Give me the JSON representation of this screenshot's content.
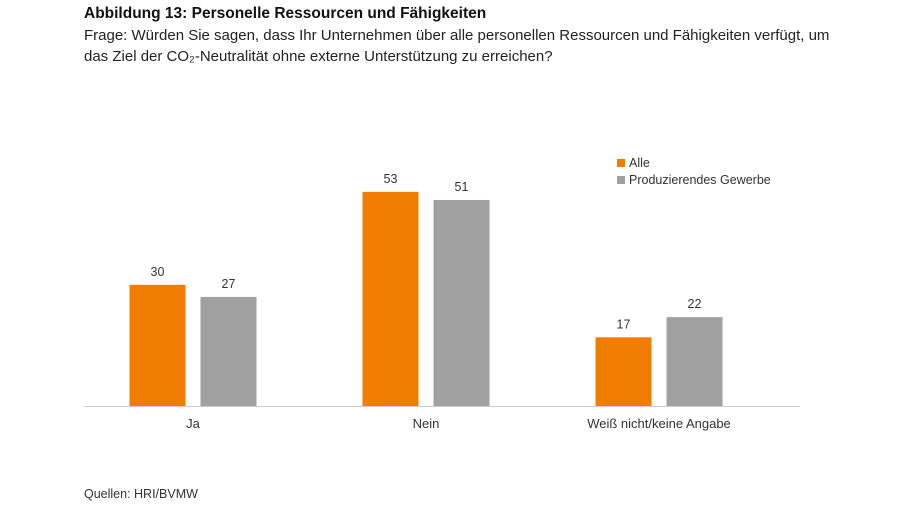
{
  "header": {
    "title": "Abbildung 13: Personelle Ressourcen und Fähigkeiten",
    "question": "Frage: Würden Sie sagen, dass Ihr Unternehmen über alle personellen Ressourcen und Fähigkeiten verfügt, um das Ziel der CO₂-Neutralität ohne externe Unterstützung zu erreichen?"
  },
  "footer": {
    "source": "Quellen: HRI/BVMW"
  },
  "colors": {
    "alle": "#f07d00",
    "gewerbe": "#a0a0a0",
    "axis": "#cccccc",
    "text": "#333333"
  },
  "chart_data": {
    "type": "bar",
    "categories": [
      "Ja",
      "Nein",
      "Weiß nicht/keine Angabe"
    ],
    "series": [
      {
        "name": "Alle",
        "values": [
          30,
          53,
          17
        ]
      },
      {
        "name": "Produzierendes Gewerbe",
        "values": [
          27,
          51,
          22
        ]
      }
    ],
    "ylim": [
      0,
      60
    ],
    "grid": false,
    "legend_position": "top-right",
    "data_labels": true
  }
}
